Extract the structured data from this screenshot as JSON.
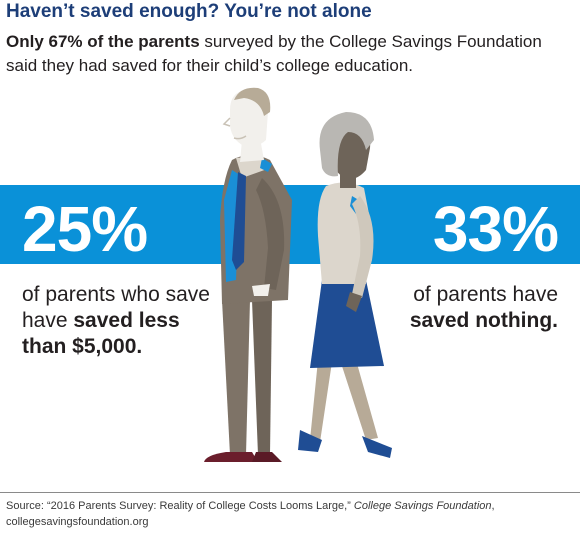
{
  "headline": "Haven’t saved enough? You’re not alone",
  "intro": {
    "lead_bold": "Only 67% of the parents",
    "rest": " surveyed by the College Savings Foundation said they had saved for their child’s college education."
  },
  "stats": {
    "left": {
      "percent": "25%",
      "line1": "of parents who save",
      "line2_plain": "have ",
      "line2_bold": "saved less",
      "line3_bold": "than $5,000."
    },
    "right": {
      "percent": "33%",
      "line1": "of parents have",
      "line2_bold": "saved nothing."
    }
  },
  "source": {
    "prefix": "Source: “2016 Parents Survey: Reality of College Costs Looms Large,” ",
    "publication": "College Savings Foundation",
    "suffix": ",",
    "url": "collegesavingsfoundation.org"
  },
  "colors": {
    "band": "#0a91d8",
    "headline": "#1d3e78",
    "man_suit": "#7e7367",
    "woman_skirt": "#1f4d94",
    "tie": "#1f4d94",
    "shoes_man": "#6b1e2c",
    "shoes_woman": "#1f4d94"
  }
}
